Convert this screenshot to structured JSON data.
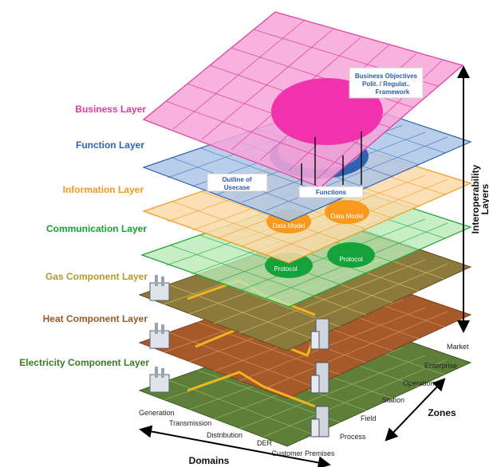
{
  "layers": [
    {
      "id": "business",
      "label": "Business Layer",
      "color": "#e3399d",
      "fill": "#f6a6d8"
    },
    {
      "id": "function",
      "label": "Function Layer",
      "color": "#2f63b1",
      "fill": "#a9c4e6"
    },
    {
      "id": "information",
      "label": "Information Layer",
      "color": "#f39a1e",
      "fill": "#fbd7a4"
    },
    {
      "id": "communication",
      "label": "Communication Layer",
      "color": "#18a237",
      "fill": "#b6e8b0"
    },
    {
      "id": "gas",
      "label": "Gas Component Layer",
      "color": "#b49b2b",
      "fill": "#8b7a3a"
    },
    {
      "id": "heat",
      "label": "Heat Component Layer",
      "color": "#9a5a25",
      "fill": "#a0552c"
    },
    {
      "id": "electricity",
      "label": "Electricity Component Layer",
      "color": "#3a7a24",
      "fill": "#5f7e3b"
    }
  ],
  "callouts": {
    "business_objectives": [
      "Business Objectives",
      "Polit. / Regulat..",
      "Framework"
    ],
    "outline_usecase": [
      "Outline of",
      "Usecase"
    ],
    "functions": "Functions",
    "data_model": "Data Model",
    "protocol": "Protocol"
  },
  "domains": {
    "title": "Domains",
    "items": [
      "Generation",
      "Transmission",
      "Distribution",
      "DER",
      "Customer Premises"
    ]
  },
  "zones": {
    "title": "Zones",
    "items": [
      "Market",
      "Enterprise",
      "Operation",
      "Station",
      "Field",
      "Process"
    ]
  },
  "interoperability": [
    "Interoperability",
    "Layers"
  ]
}
